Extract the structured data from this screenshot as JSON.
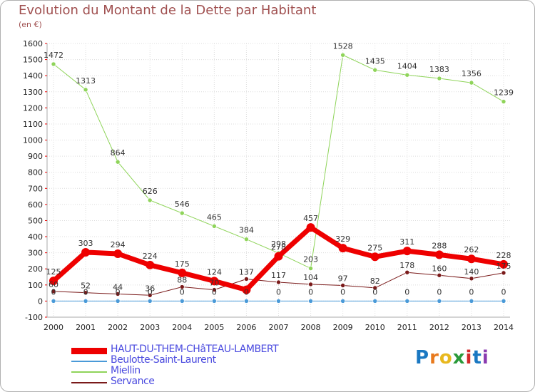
{
  "chart_data": {
    "type": "line",
    "title": "Evolution du Montant de la Dette par Habitant",
    "subtitle": "(en €)",
    "x": [
      "2000",
      "2001",
      "2002",
      "2003",
      "2004",
      "2005",
      "2006",
      "2007",
      "2008",
      "2009",
      "2010",
      "2011",
      "2012",
      "2013",
      "2014"
    ],
    "ylim": [
      -100,
      1600
    ],
    "yticks": [
      -100,
      0,
      100,
      200,
      300,
      400,
      500,
      600,
      700,
      800,
      900,
      1000,
      1100,
      1200,
      1300,
      1400,
      1500,
      1600
    ],
    "grid": true,
    "legend_position": "bottom-left",
    "series": [
      {
        "name": "HAUT-DU-THEM-CHâTEAU-LAMBERT",
        "color": "#ee0000",
        "line_width": 7,
        "values": [
          125,
          303,
          294,
          224,
          175,
          124,
          70,
          278,
          457,
          329,
          275,
          311,
          288,
          262,
          228
        ],
        "labels": [
          "125",
          "303",
          "294",
          "224",
          "175",
          "124",
          "",
          "278",
          "457",
          "329",
          "275",
          "311",
          "288",
          "262",
          "228"
        ]
      },
      {
        "name": "Beulotte-Saint-Laurent",
        "color": "#4a9ad8",
        "line_width": 1,
        "values": [
          0,
          0,
          0,
          0,
          0,
          0,
          0,
          0,
          0,
          0,
          0,
          0,
          0,
          0,
          0
        ],
        "labels": [
          "0",
          "0",
          "0",
          "0",
          "0",
          "0",
          "0",
          "0",
          "0",
          "0",
          "0",
          "0",
          "0",
          "0",
          "0"
        ]
      },
      {
        "name": "Miellin",
        "color": "#8fd45a",
        "line_width": 1,
        "values": [
          1472,
          1313,
          864,
          626,
          546,
          465,
          384,
          298,
          203,
          1528,
          1435,
          1404,
          1383,
          1356,
          1239
        ],
        "labels": [
          "1472",
          "1313",
          "864",
          "626",
          "546",
          "465",
          "384",
          "298",
          "203",
          "1528",
          "1435",
          "1404",
          "1383",
          "1356",
          "1239"
        ]
      },
      {
        "name": "Servance",
        "color": "#7a1a1a",
        "line_width": 1,
        "values": [
          60,
          52,
          44,
          36,
          88,
          70,
          137,
          117,
          104,
          97,
          82,
          178,
          160,
          140,
          175
        ],
        "labels": [
          "60",
          "52",
          "44",
          "36",
          "88",
          "70",
          "137",
          "117",
          "104",
          "97",
          "82",
          "178",
          "160",
          "140",
          "175"
        ]
      }
    ]
  },
  "logo": {
    "letters": [
      "P",
      "r",
      "o",
      "x",
      "i",
      "t",
      "i"
    ],
    "colors": [
      "#1a78c2",
      "#e87a1e",
      "#e8b81e",
      "#2a9a3a",
      "#d42a2a",
      "#1a78c2",
      "#8a3ab0"
    ]
  }
}
